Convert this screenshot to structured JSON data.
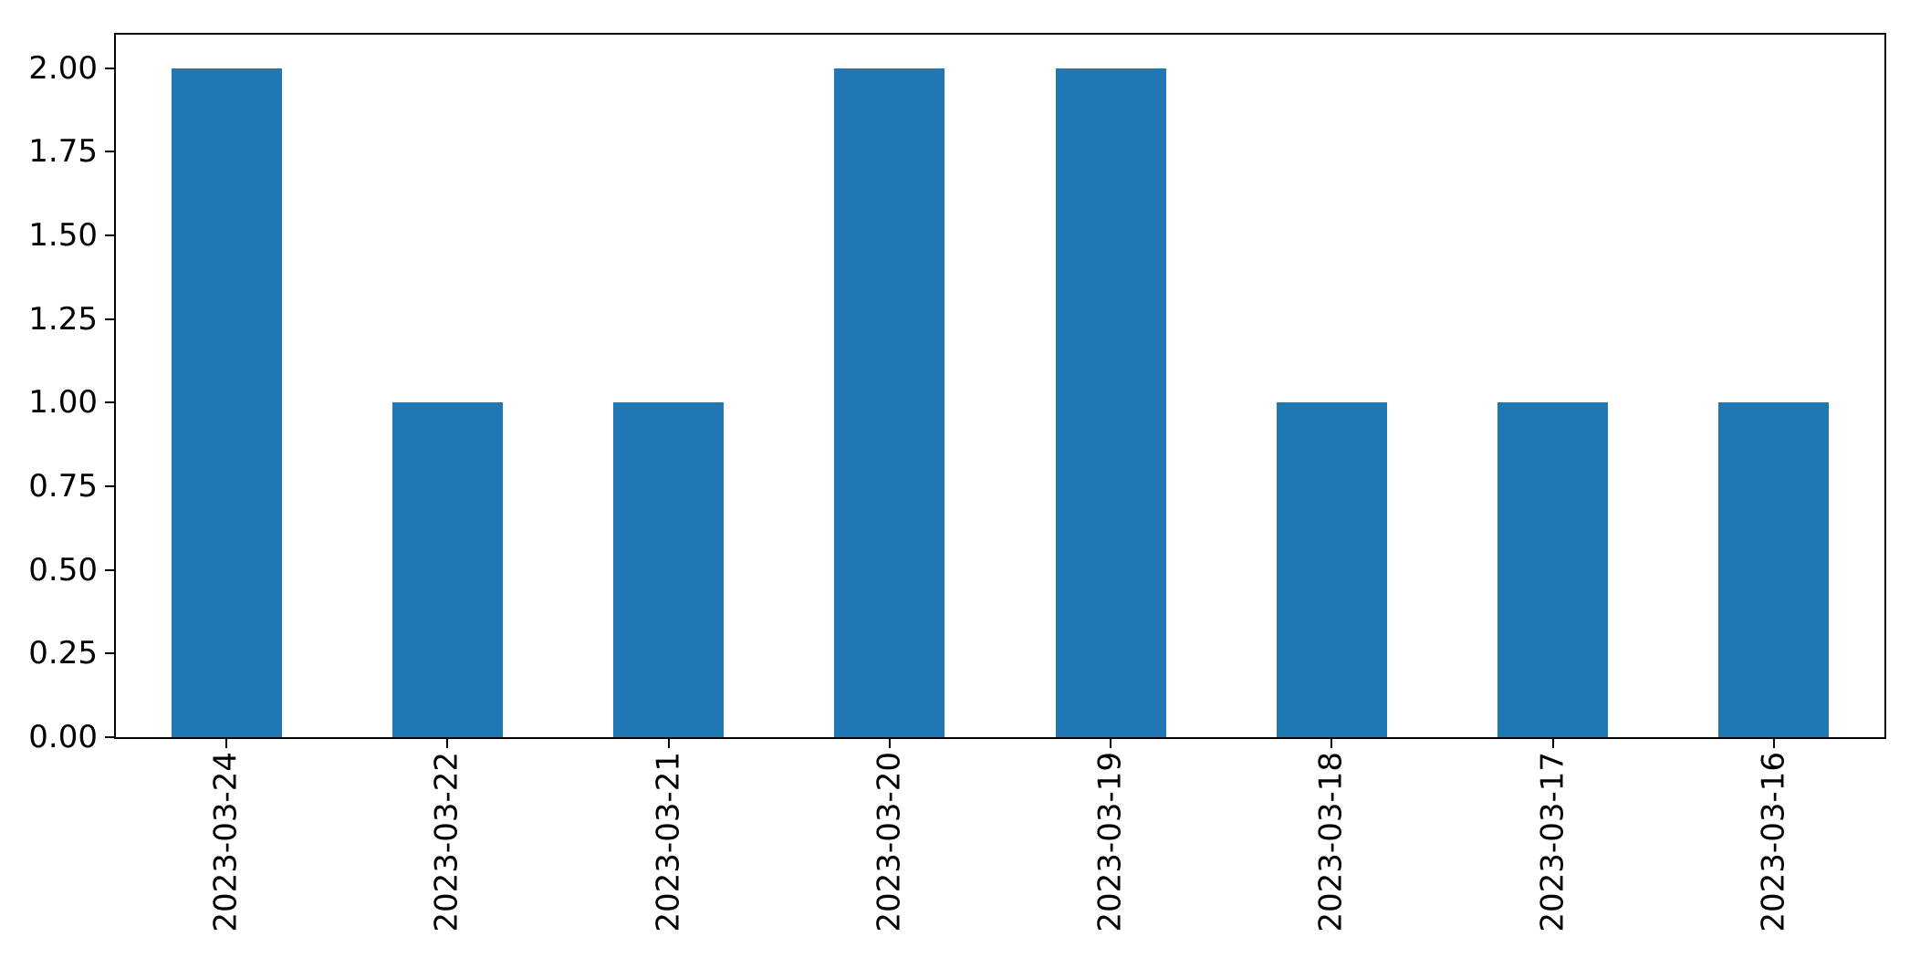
{
  "chart_data": {
    "type": "bar",
    "title": "",
    "xlabel": "",
    "ylabel": "",
    "categories": [
      "2023-03-24",
      "2023-03-22",
      "2023-03-21",
      "2023-03-20",
      "2023-03-19",
      "2023-03-18",
      "2023-03-17",
      "2023-03-16"
    ],
    "values": [
      2,
      1,
      1,
      2,
      2,
      1,
      1,
      1
    ],
    "ylim": [
      0,
      2.1
    ],
    "ytick_values": [
      0.0,
      0.25,
      0.5,
      0.75,
      1.0,
      1.25,
      1.5,
      1.75,
      2.0
    ],
    "ytick_labels": [
      "0.00",
      "0.25",
      "0.50",
      "0.75",
      "1.00",
      "1.25",
      "1.50",
      "1.75",
      "2.00"
    ],
    "x_tick_rotation_deg": 90,
    "bar_color": "#1f77b4",
    "bar_width_fraction": 0.5,
    "axis_color": "#000000",
    "background_color": "#ffffff",
    "grid": false,
    "legend": false
  }
}
